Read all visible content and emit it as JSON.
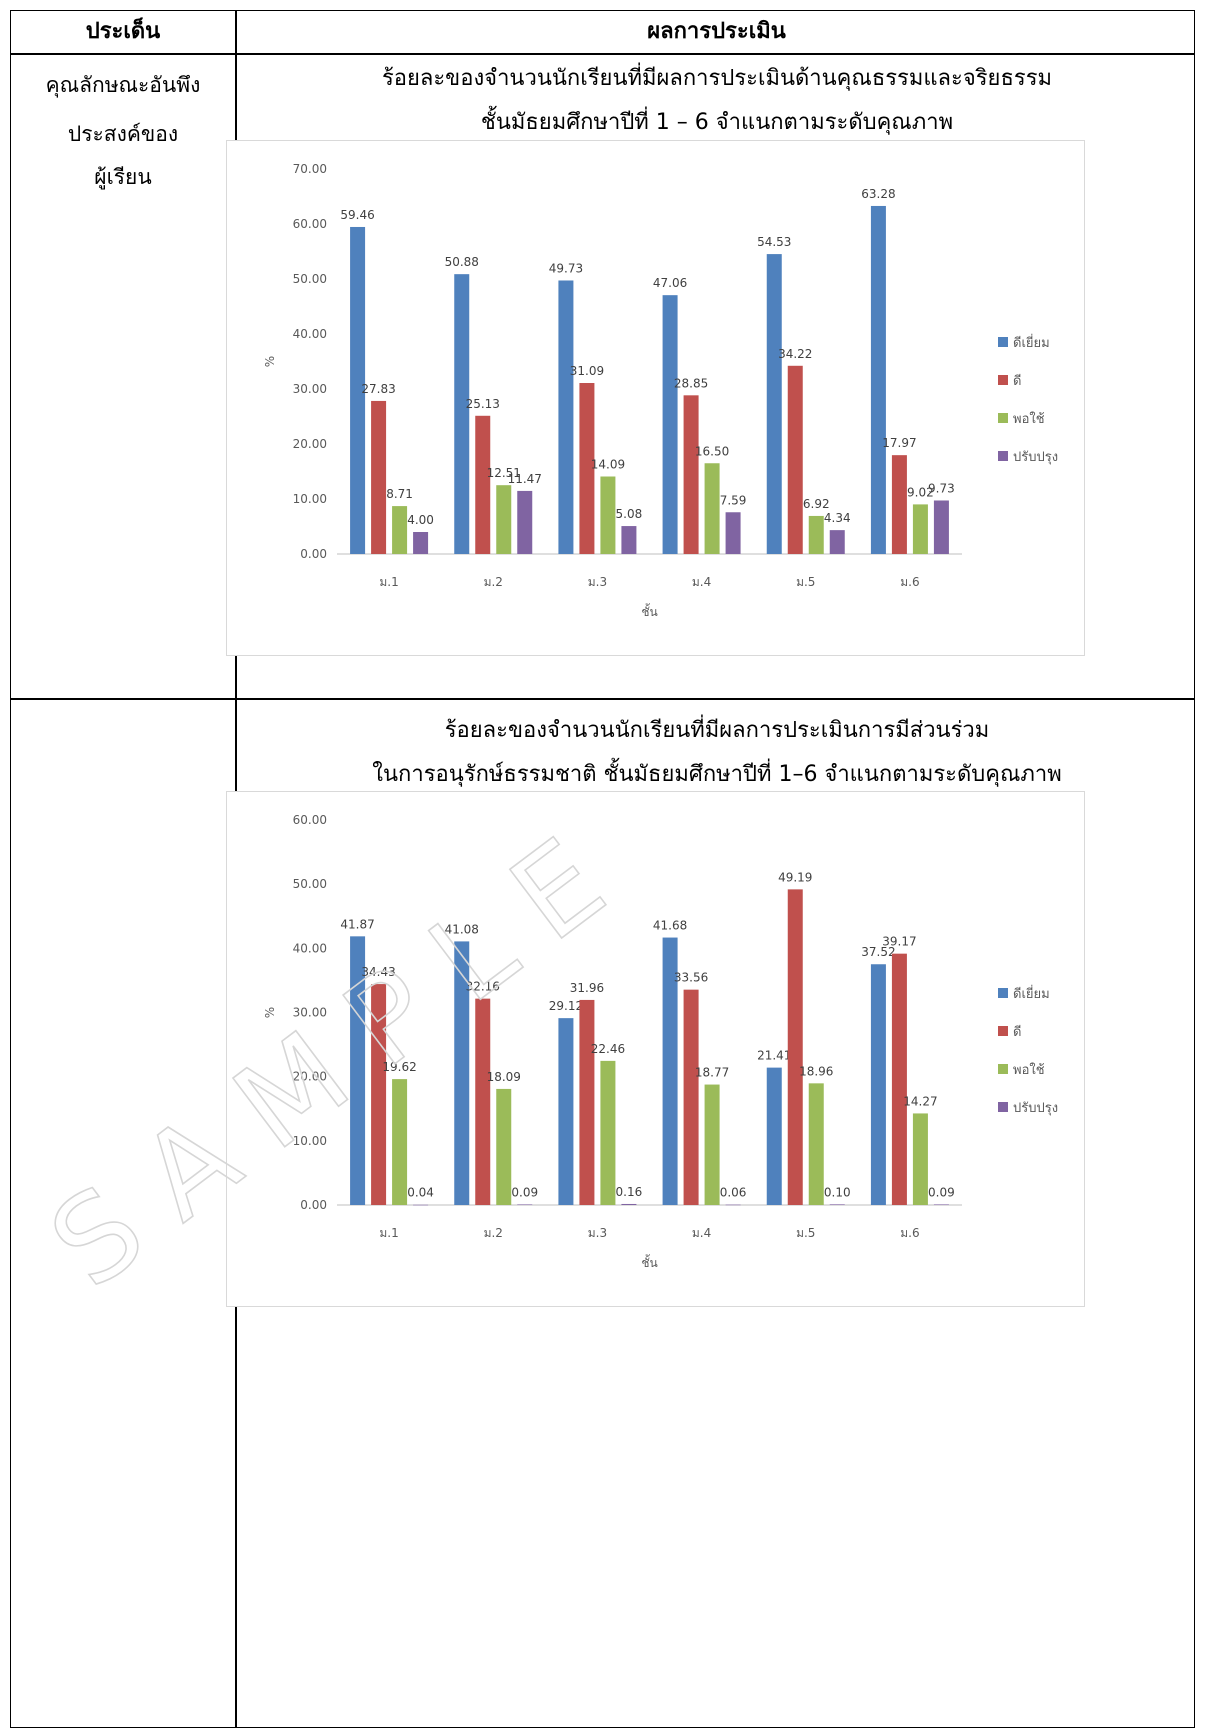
{
  "table": {
    "header_col1": "ประเด็น",
    "header_col2": "ผลการประเมิน",
    "topic_line1": "คุณลักษณะอันพึง",
    "topic_line2": "ประสงค์ของ",
    "topic_line3": "ผู้เรียน"
  },
  "watermark": "SAMPLE",
  "chart1_title_line1": "ร้อยละของจำนวนนักเรียนที่มีผลการประเมินด้านคุณธรรมและจริยธรรม",
  "chart1_title_line2": "ชั้นมัธยมศึกษาปีที่ 1 – 6 จำแนกตามระดับคุณภาพ",
  "chart2_title_line1": "ร้อยละของจำนวนนักเรียนที่มีผลการประเมินการมีส่วนร่วม",
  "chart2_title_line2": "ในการอนุรักษ์ธรรมชาติ ชั้นมัธยมศึกษาปีที่ 1–6 จำแนกตามระดับคุณภาพ",
  "chart_data": [
    {
      "type": "bar",
      "categories": [
        "ม.1",
        "ม.2",
        "ม.3",
        "ม.4",
        "ม.5",
        "ม.6"
      ],
      "xlabel": "ชั้น",
      "ylabel": "%",
      "ylim": [
        0,
        70
      ],
      "yticks": [
        "0.00",
        "10.00",
        "20.00",
        "30.00",
        "40.00",
        "50.00",
        "60.00",
        "70.00"
      ],
      "legend_position": "right",
      "grid": false,
      "series": [
        {
          "name": "ดีเยี่ยม",
          "color": "#4F81BD",
          "values": [
            59.46,
            50.88,
            49.73,
            47.06,
            54.53,
            63.28
          ]
        },
        {
          "name": "ดี",
          "color": "#C0504D",
          "values": [
            27.83,
            25.13,
            31.09,
            28.85,
            34.22,
            17.97
          ]
        },
        {
          "name": "พอใช้",
          "color": "#9BBB59",
          "values": [
            8.71,
            12.51,
            14.09,
            16.5,
            6.92,
            9.02
          ]
        },
        {
          "name": "ปรับปรุง",
          "color": "#8064A2",
          "values": [
            4.0,
            11.47,
            5.08,
            7.59,
            4.34,
            9.73
          ]
        }
      ]
    },
    {
      "type": "bar",
      "categories": [
        "ม.1",
        "ม.2",
        "ม.3",
        "ม.4",
        "ม.5",
        "ม.6"
      ],
      "xlabel": "ชั้น",
      "ylabel": "%",
      "ylim": [
        0,
        60
      ],
      "yticks": [
        "0.00",
        "10.00",
        "20.00",
        "30.00",
        "40.00",
        "50.00",
        "60.00"
      ],
      "legend_position": "right",
      "grid": false,
      "series": [
        {
          "name": "ดีเยี่ยม",
          "color": "#4F81BD",
          "values": [
            41.87,
            41.08,
            29.12,
            41.68,
            21.41,
            37.52
          ]
        },
        {
          "name": "ดี",
          "color": "#C0504D",
          "values": [
            34.43,
            32.16,
            31.96,
            33.56,
            49.19,
            39.17
          ]
        },
        {
          "name": "พอใช้",
          "color": "#9BBB59",
          "values": [
            19.62,
            18.09,
            22.46,
            18.77,
            18.96,
            14.27
          ]
        },
        {
          "name": "ปรับปรุง",
          "color": "#8064A2",
          "values": [
            0.04,
            0.09,
            0.16,
            0.06,
            0.1,
            0.09
          ]
        }
      ]
    }
  ]
}
